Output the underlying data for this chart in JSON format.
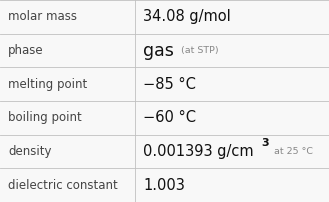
{
  "rows": [
    {
      "label": "molar mass",
      "value": "34.08 g/mol",
      "type": "simple"
    },
    {
      "label": "phase",
      "value": "gas",
      "type": "phase",
      "note": "at STP"
    },
    {
      "label": "melting point",
      "value": "−85 °C",
      "type": "simple"
    },
    {
      "label": "boiling point",
      "value": "−60 °C",
      "type": "simple"
    },
    {
      "label": "density",
      "value": "0.001393 g/cm",
      "type": "density",
      "note": "at 25 °C"
    },
    {
      "label": "dielectric constant",
      "value": "1.003",
      "type": "simple"
    }
  ],
  "col_split": 0.41,
  "bg_color": "#f8f8f8",
  "border_color": "#c0c0c0",
  "label_color": "#444444",
  "value_color": "#111111",
  "note_color": "#888888",
  "label_fontsize": 8.5,
  "value_fontsize": 10.5,
  "note_fontsize": 6.8,
  "phase_fontsize": 12.5
}
